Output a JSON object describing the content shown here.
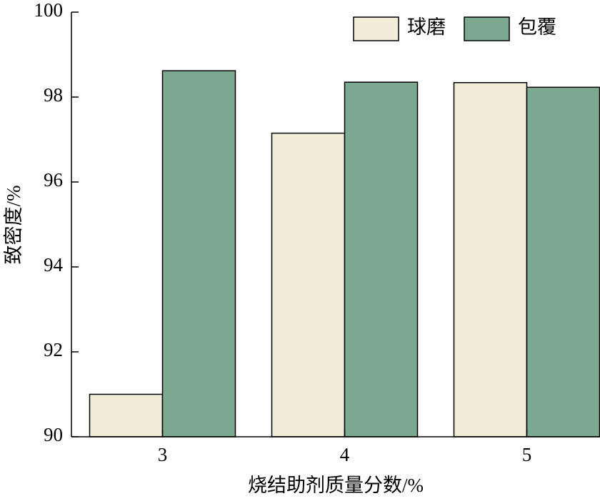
{
  "chart_data": {
    "type": "bar",
    "xlabel": "烧结助剂质量分数/%",
    "ylabel": "致密度/%",
    "categories": [
      "3",
      "4",
      "5"
    ],
    "series": [
      {
        "name": "球磨",
        "color": "#f0ecd8",
        "values": [
          91.0,
          97.15,
          98.34
        ]
      },
      {
        "name": "包覆",
        "color": "#7ea991",
        "values": [
          98.62,
          98.35,
          98.23
        ]
      }
    ],
    "ylim": [
      90,
      100
    ],
    "yticks": [
      90,
      92,
      94,
      96,
      98,
      100
    ],
    "legend": "upper right"
  }
}
